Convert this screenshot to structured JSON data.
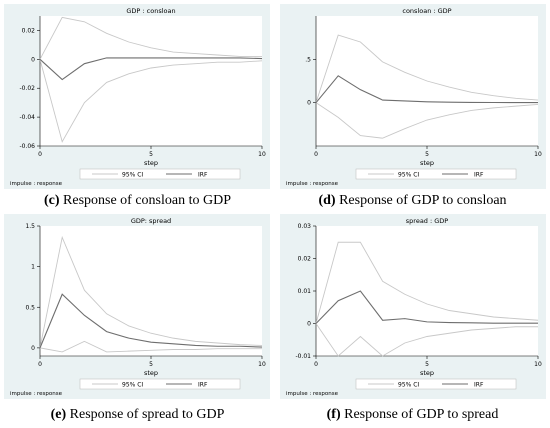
{
  "captions": {
    "c": {
      "letter": "(c)",
      "text": " Response of consloan to GDP"
    },
    "d": {
      "letter": "(d)",
      "text": " Response of GDP to consloan"
    },
    "e": {
      "letter": "(e)",
      "text": " Response of spread to GDP"
    },
    "f": {
      "letter": "(f)",
      "text": " Response of GDP to spread"
    }
  },
  "colors": {
    "ci": "#c8c8c8",
    "irf": "#6e6e6e",
    "panel_bg": "#eaf2f3"
  },
  "chart_data": [
    {
      "type": "line",
      "title": "GDP : consloan",
      "xlabel": "step",
      "note": "impulse : response",
      "xlim": [
        0,
        10
      ],
      "ylim": [
        -0.06,
        0.03
      ],
      "xticks": [
        0,
        5,
        10
      ],
      "yticks": [
        -0.06,
        -0.04,
        -0.02,
        0,
        0.02
      ],
      "ytick_labels": [
        "-0.06",
        "-0.04",
        "-0.02",
        "0",
        "0.02"
      ],
      "x": [
        0,
        1,
        2,
        3,
        4,
        5,
        6,
        7,
        8,
        9,
        10
      ],
      "series": [
        {
          "name": "95% CI",
          "role": "ci_upper",
          "values": [
            0,
            0.029,
            0.026,
            0.018,
            0.012,
            0.008,
            0.005,
            0.004,
            0.003,
            0.002,
            0.002
          ]
        },
        {
          "name": "95% CI",
          "role": "ci_lower",
          "values": [
            0,
            -0.057,
            -0.03,
            -0.016,
            -0.01,
            -0.006,
            -0.004,
            -0.003,
            -0.002,
            -0.002,
            -0.001
          ]
        },
        {
          "name": "IRF",
          "role": "irf",
          "values": [
            0,
            -0.014,
            -0.003,
            0.001,
            0.001,
            0.001,
            0.001,
            0.001,
            0.001,
            0.001,
            0.0005
          ]
        }
      ],
      "legend": [
        "95% CI",
        "IRF"
      ]
    },
    {
      "type": "line",
      "title": "consloan : GDP",
      "xlabel": "step",
      "note": "impulse : response",
      "xlim": [
        0,
        10
      ],
      "ylim": [
        -0.5,
        1.0
      ],
      "xticks": [
        0,
        5,
        10
      ],
      "yticks": [
        0,
        0.5
      ],
      "ytick_labels": [
        "0",
        ".5"
      ],
      "x": [
        0,
        1,
        2,
        3,
        4,
        5,
        6,
        7,
        8,
        9,
        10
      ],
      "series": [
        {
          "name": "95% CI",
          "role": "ci_upper",
          "values": [
            0,
            0.78,
            0.7,
            0.47,
            0.35,
            0.25,
            0.18,
            0.12,
            0.08,
            0.05,
            0.03
          ]
        },
        {
          "name": "95% CI",
          "role": "ci_lower",
          "values": [
            0,
            -0.17,
            -0.38,
            -0.41,
            -0.3,
            -0.2,
            -0.14,
            -0.09,
            -0.06,
            -0.04,
            -0.02
          ]
        },
        {
          "name": "IRF",
          "role": "irf",
          "values": [
            0,
            0.31,
            0.15,
            0.03,
            0.02,
            0.01,
            0.005,
            0.003,
            0.002,
            0.001,
            0.001
          ]
        }
      ],
      "legend": [
        "95% CI",
        "IRF"
      ]
    },
    {
      "type": "line",
      "title": "GDP: spread",
      "xlabel": "step",
      "note": "impulse : response",
      "xlim": [
        0,
        10
      ],
      "ylim": [
        -0.1,
        1.5
      ],
      "xticks": [
        0,
        5,
        10
      ],
      "yticks": [
        0,
        0.5,
        1,
        1.5
      ],
      "ytick_labels": [
        "0",
        "0.5",
        "1",
        "1.5"
      ],
      "x": [
        0,
        1,
        2,
        3,
        4,
        5,
        6,
        7,
        8,
        9,
        10
      ],
      "series": [
        {
          "name": "95% CI",
          "role": "ci_upper",
          "values": [
            0,
            1.36,
            0.71,
            0.42,
            0.27,
            0.18,
            0.12,
            0.08,
            0.06,
            0.04,
            0.03
          ]
        },
        {
          "name": "95% CI",
          "role": "ci_lower",
          "values": [
            0,
            -0.05,
            0.08,
            -0.05,
            -0.04,
            -0.03,
            -0.02,
            -0.02,
            -0.01,
            -0.01,
            -0.01
          ]
        },
        {
          "name": "IRF",
          "role": "irf",
          "values": [
            0,
            0.66,
            0.4,
            0.2,
            0.12,
            0.07,
            0.05,
            0.03,
            0.02,
            0.02,
            0.01
          ]
        }
      ],
      "legend": [
        "95% CI",
        "IRF"
      ]
    },
    {
      "type": "line",
      "title": "spread : GDP",
      "xlabel": "step",
      "note": "impulse : response",
      "xlim": [
        0,
        10
      ],
      "ylim": [
        -0.01,
        0.03
      ],
      "xticks": [
        0,
        5,
        10
      ],
      "yticks": [
        -0.01,
        0,
        0.01,
        0.02,
        0.03
      ],
      "ytick_labels": [
        "-0.01",
        "0",
        "0.01",
        "0.02",
        "0.03"
      ],
      "x": [
        0,
        1,
        2,
        3,
        4,
        5,
        6,
        7,
        8,
        9,
        10
      ],
      "series": [
        {
          "name": "95% CI",
          "role": "ci_upper",
          "values": [
            0,
            0.025,
            0.025,
            0.013,
            0.009,
            0.006,
            0.004,
            0.003,
            0.002,
            0.0015,
            0.001
          ]
        },
        {
          "name": "95% CI",
          "role": "ci_lower",
          "values": [
            0,
            -0.01,
            -0.004,
            -0.01,
            -0.006,
            -0.004,
            -0.003,
            -0.002,
            -0.0015,
            -0.001,
            -0.001
          ]
        },
        {
          "name": "IRF",
          "role": "irf",
          "values": [
            0,
            0.007,
            0.01,
            0.001,
            0.0015,
            0.0005,
            0.0003,
            0.0002,
            0.0001,
            0.0001,
            0.0001
          ]
        }
      ],
      "legend": [
        "95% CI",
        "IRF"
      ]
    }
  ]
}
